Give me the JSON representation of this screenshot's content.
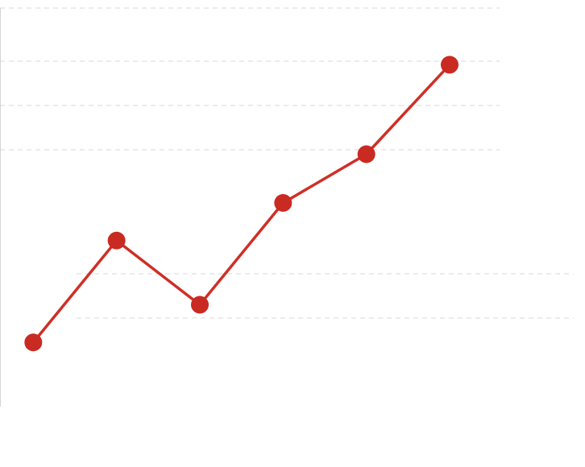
{
  "chart_data": {
    "type": "line",
    "title": "",
    "xlabel": "",
    "ylabel": "",
    "x": [
      1,
      2,
      3,
      4,
      5,
      6
    ],
    "y": [
      1.45,
      3.75,
      2.3,
      4.6,
      5.7,
      7.72
    ],
    "ylim": [
      0,
      9
    ],
    "grid": true,
    "axes": {
      "left_spine": true,
      "tick_labels_visible": false
    },
    "colors": {
      "line": "#cf2f26",
      "marker": "#c92a22",
      "grid": "#d9d9d9",
      "axis": "#d4d4d4",
      "background": "#ffffff"
    }
  }
}
